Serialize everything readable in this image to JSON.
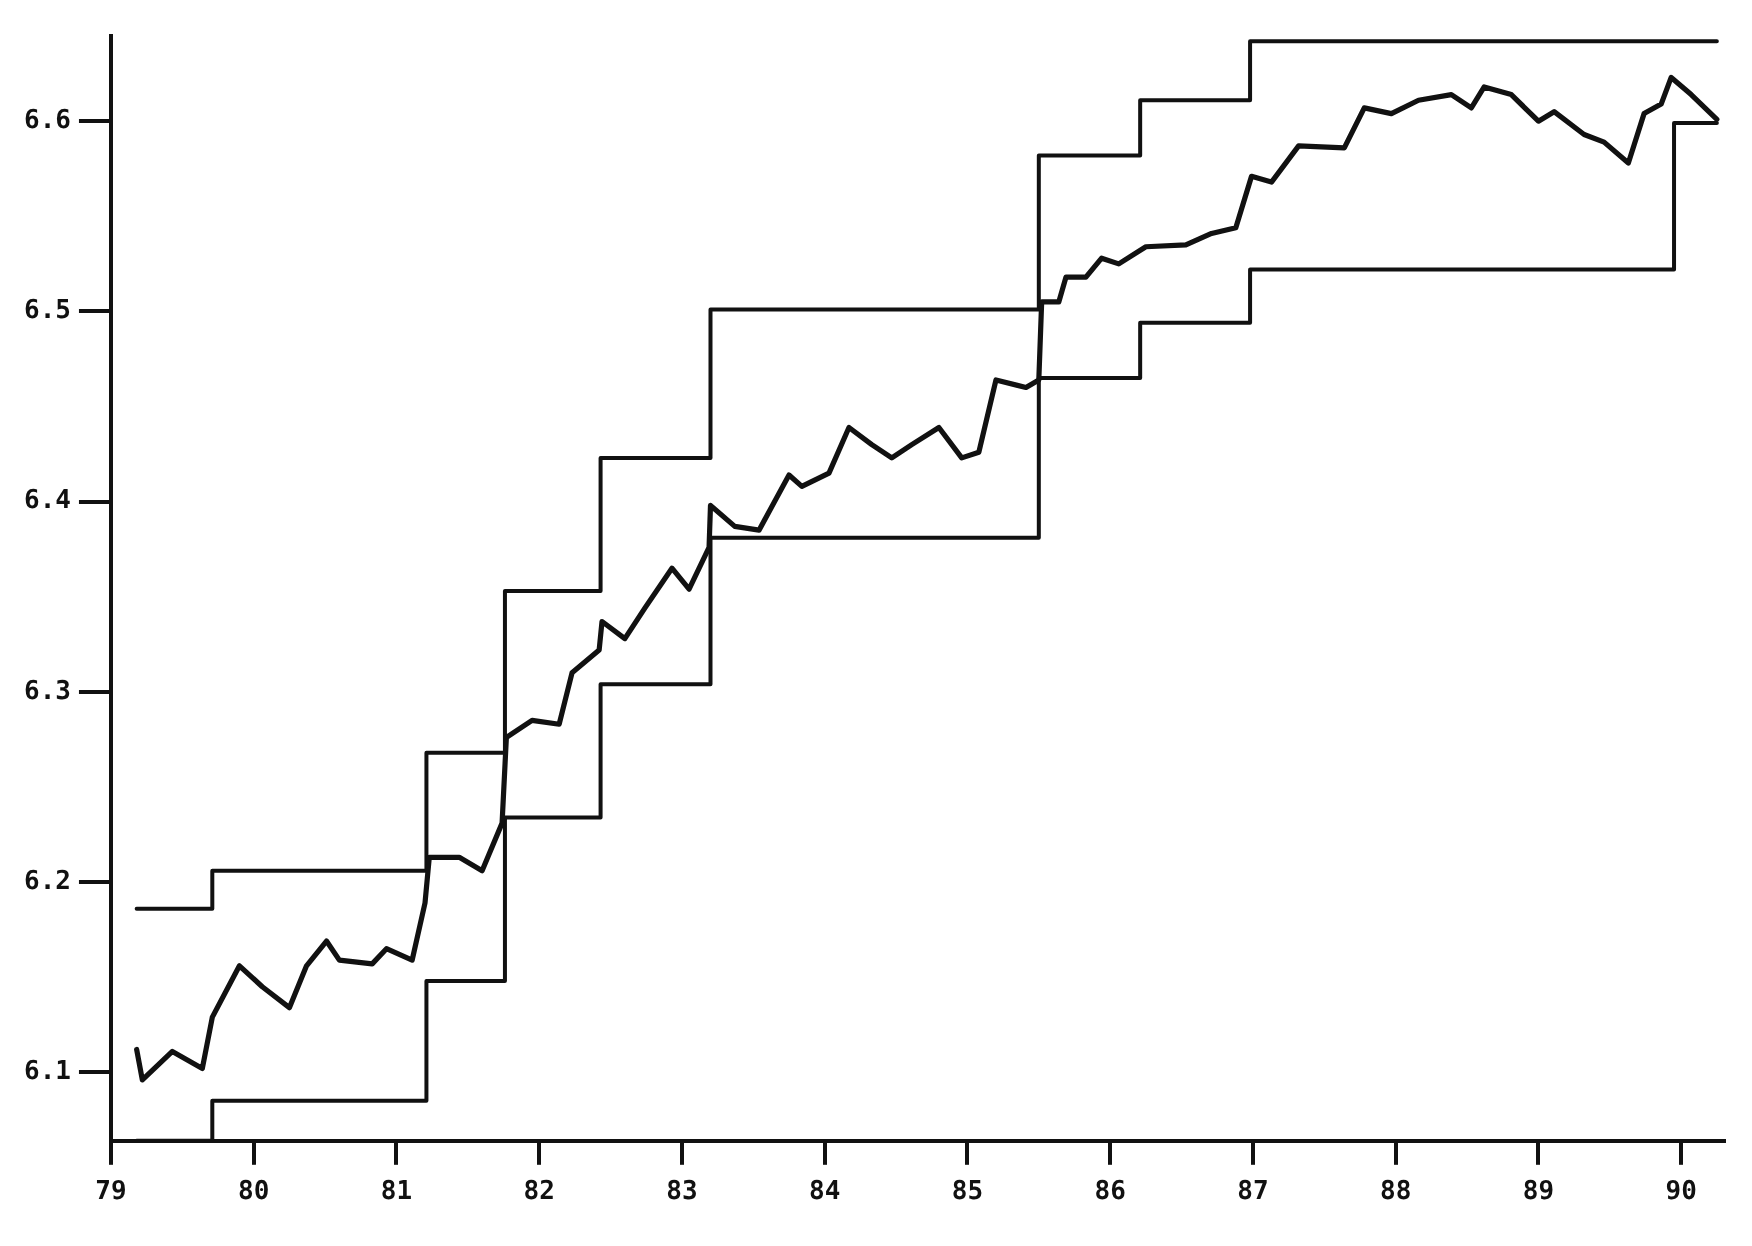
{
  "chart_data": {
    "type": "line",
    "marker": "none",
    "line_style": "solid",
    "grid": false,
    "legend": false,
    "xlim": [
      79,
      90.3
    ],
    "xticks": [
      79,
      80,
      81,
      82,
      83,
      84,
      85,
      86,
      87,
      88,
      89,
      90
    ],
    "ylim": [
      6.064,
      6.645
    ],
    "yticks": [
      6.1,
      6.2,
      6.3,
      6.4,
      6.5,
      6.6
    ],
    "series": [
      {
        "type": "line",
        "color": "#111111",
        "x": [
          79.18,
          79.22,
          79.43,
          79.64,
          79.71,
          79.9,
          80.06,
          80.25,
          80.37,
          80.51,
          80.6,
          80.83,
          80.93,
          81.11,
          81.2,
          81.23,
          81.44,
          81.6,
          81.74,
          81.77,
          81.95,
          82.14,
          82.23,
          82.42,
          82.44,
          82.6,
          82.74,
          82.93,
          83.05,
          83.19,
          83.2,
          83.37,
          83.54,
          83.75,
          83.84,
          84.03,
          84.17,
          84.33,
          84.47,
          84.61,
          84.8,
          84.96,
          85.08,
          85.2,
          85.41,
          85.5,
          85.52,
          85.64,
          85.69,
          85.83,
          85.94,
          86.06,
          86.25,
          86.53,
          86.71,
          86.88,
          86.99,
          87.13,
          87.32,
          87.64,
          87.78,
          87.97,
          88.16,
          88.39,
          88.53,
          88.62,
          88.81,
          89,
          89.11,
          89.32,
          89.46,
          89.63,
          89.74,
          89.86,
          89.93,
          90.07,
          90.25
        ],
        "values": [
          6.112,
          6.096,
          6.111,
          6.102,
          6.129,
          6.156,
          6.145,
          6.134,
          6.156,
          6.169,
          6.159,
          6.157,
          6.165,
          6.159,
          6.189,
          6.213,
          6.213,
          6.206,
          6.231,
          6.276,
          6.285,
          6.283,
          6.31,
          6.322,
          6.337,
          6.328,
          6.344,
          6.365,
          6.354,
          6.376,
          6.398,
          6.387,
          6.385,
          6.414,
          6.408,
          6.415,
          6.439,
          6.43,
          6.423,
          6.43,
          6.439,
          6.423,
          6.426,
          6.464,
          6.46,
          6.464,
          6.505,
          6.505,
          6.518,
          6.518,
          6.528,
          6.525,
          6.534,
          6.535,
          6.541,
          6.544,
          6.571,
          6.568,
          6.587,
          6.586,
          6.607,
          6.604,
          6.611,
          6.614,
          6.607,
          6.618,
          6.614,
          6.6,
          6.605,
          6.593,
          6.589,
          6.578,
          6.604,
          6.609,
          6.623,
          6.614,
          6.601
        ]
      },
      {
        "type": "step",
        "color": "#111111",
        "x": [
          79.18,
          79.71,
          81.21,
          81.76,
          82.43,
          83.2,
          85.5,
          86.21,
          86.98,
          90.25
        ],
        "values": [
          6.186,
          6.206,
          6.268,
          6.353,
          6.423,
          6.501,
          6.582,
          6.611,
          6.642,
          6.642
        ]
      },
      {
        "type": "step",
        "color": "#111111",
        "x": [
          79.18,
          79.71,
          81.21,
          81.76,
          82.43,
          83.2,
          85.5,
          86.21,
          86.98,
          89.95,
          90.25
        ],
        "values": [
          6.064,
          6.085,
          6.148,
          6.234,
          6.304,
          6.381,
          6.465,
          6.494,
          6.522,
          6.599,
          6.599
        ]
      }
    ]
  }
}
